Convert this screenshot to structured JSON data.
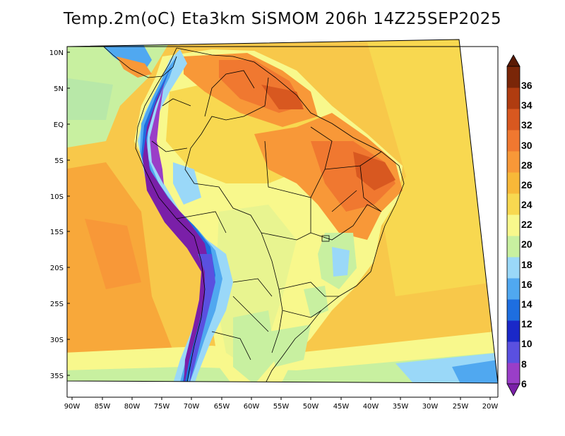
{
  "title": "Temp.2m(oC) Eta3km SiSMOM 206h 14Z25SEP2025",
  "map": {
    "variable": "2 m temperature",
    "units": "oC",
    "lat_labels": [
      "10N",
      "5N",
      "EQ",
      "5S",
      "10S",
      "15S",
      "20S",
      "25S",
      "30S",
      "35S"
    ],
    "lon_labels": [
      "90W",
      "85W",
      "80W",
      "75W",
      "70W",
      "65W",
      "60W",
      "55W",
      "50W",
      "45W",
      "40W",
      "35W",
      "30W",
      "25W",
      "20W"
    ]
  },
  "colorbar": {
    "levels": [
      "6",
      "8",
      "10",
      "12",
      "14",
      "16",
      "18",
      "20",
      "22",
      "24",
      "26",
      "28",
      "30",
      "32",
      "34",
      "36"
    ],
    "colors": [
      "#7a1fa8",
      "#9a3ec8",
      "#5a50e0",
      "#1a28c8",
      "#1e6ee0",
      "#50a8f0",
      "#9ad8f8",
      "#c8f0a0",
      "#f8f88c",
      "#f8d850",
      "#f8b838",
      "#f89838",
      "#f07830",
      "#d85820",
      "#b03c10",
      "#7a2608",
      "#5a1a04"
    ]
  }
}
